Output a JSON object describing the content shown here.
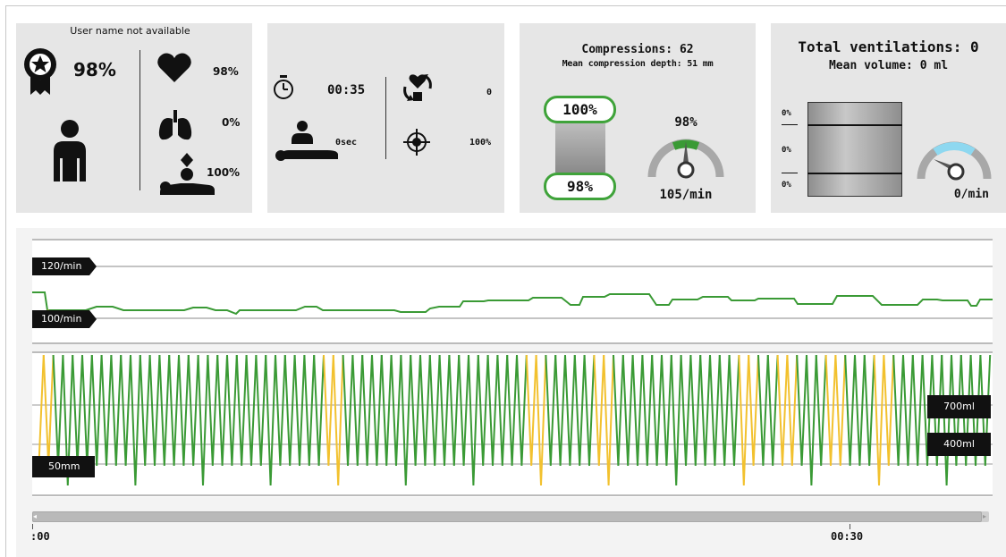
{
  "user": {
    "name": "User name not available",
    "overall_score": "98%",
    "compression_score": "98%",
    "ventilation_score": "0%",
    "recoil_score": "100%"
  },
  "timing": {
    "elapsed": "00:35",
    "no_flow_time": "0sec",
    "pauses_count": "0",
    "hand_position": "100%"
  },
  "compressions": {
    "title": "Compressions: 62",
    "mean_depth": "Mean compression depth: 51 mm",
    "recoil_pct": "100%",
    "depth_pct": "98%",
    "rate_pct": "98%",
    "rate": "105/min",
    "rate_gauge_level": 0.5
  },
  "ventilations": {
    "title": "Total ventilations: 0",
    "mean_volume": "Mean volume: 0 ml",
    "bar_labels": [
      "0%",
      "0%",
      "0%"
    ],
    "rate": "0/min",
    "rate_gauge_level": 0.15
  },
  "timeline": {
    "rate_upper": "120/min",
    "rate_lower": "100/min",
    "depth_marker": "50mm",
    "volume_upper": "700ml",
    "volume_lower": "400ml",
    "time_start": ":00",
    "time_mid": "00:30"
  },
  "colors": {
    "good": "#3a9a35",
    "warn": "#f2c12e",
    "gauge_blue": "#8ed8f0"
  },
  "icons": [
    "award-icon",
    "person-icon",
    "heart-icon",
    "lungs-icon",
    "recoil-icon",
    "stopwatch-icon",
    "cpr-person-icon",
    "pause-cycle-icon",
    "hand-target-icon"
  ]
}
